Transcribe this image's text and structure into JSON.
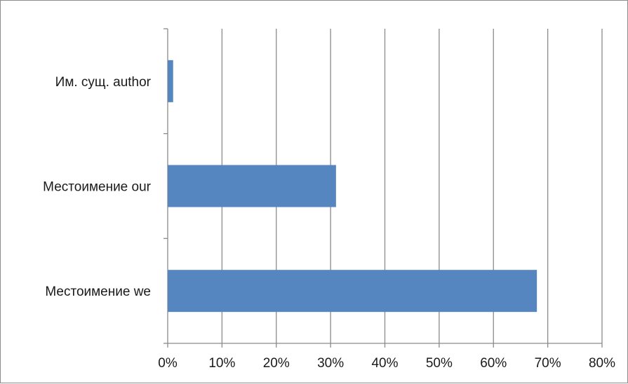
{
  "chart_data": {
    "type": "bar",
    "orientation": "horizontal",
    "categories": [
      "Им. сущ. author",
      "Местоимение our",
      "Местоимение we"
    ],
    "values": [
      1,
      31,
      68
    ],
    "value_unit": "%",
    "xlim": [
      0,
      80
    ],
    "x_ticks": [
      "0%",
      "10%",
      "20%",
      "30%",
      "40%",
      "50%",
      "60%",
      "70%",
      "80%"
    ],
    "grid": "vertical",
    "bar_color": "#5586c0",
    "title": "",
    "xlabel": "",
    "ylabel": ""
  }
}
